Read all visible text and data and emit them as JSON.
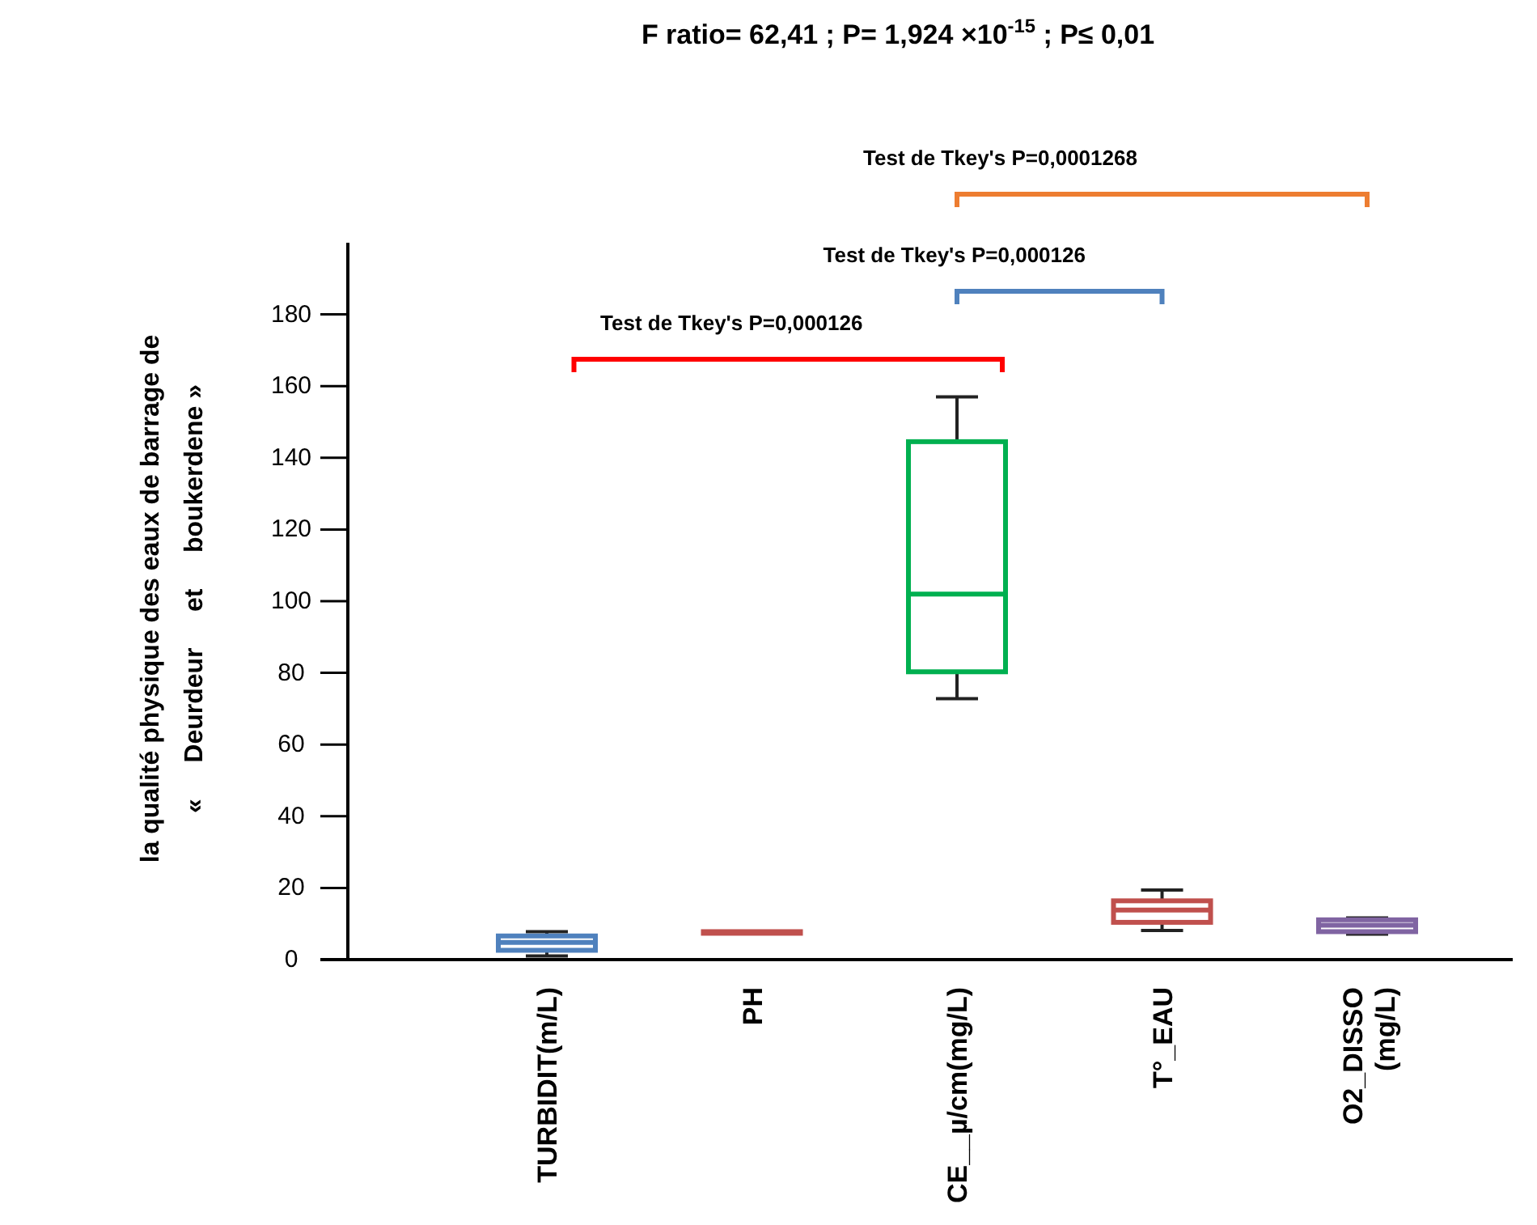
{
  "chart_data": {
    "type": "box",
    "title": "F ratio= 62,41 ; P= 1,924 ×10$^{-15}$ ; P≤ 0,01",
    "ylabel": "la qualité physique des eaux de barrage de\n«     Deurdeur     et     boukerdene »",
    "categories": [
      "TURBIDIT(m/L)",
      "PH",
      "CE__µ/cm(mg/L)",
      "T°_EAU",
      "O2_DISSO\n(mg/L)"
    ],
    "colors": [
      "#4f81bd",
      "#c0504d",
      "#00b050",
      "#c0504d",
      "#8064a2"
    ],
    "boxes": [
      {
        "low": 1.0,
        "q1": 2.6,
        "median": 4.8,
        "q3": 6.6,
        "high": 7.8
      },
      {
        "low": 7.5,
        "q1": 7.6,
        "median": 7.7,
        "q3": 7.8,
        "high": 7.9
      },
      {
        "low": 72.8,
        "q1": 80.3,
        "median": 102,
        "q3": 144.5,
        "high": 157
      },
      {
        "low": 8.1,
        "q1": 10.4,
        "median": 13.8,
        "q3": 16.4,
        "high": 19.4
      },
      {
        "low": 7.1,
        "q1": 7.8,
        "median": 9.6,
        "q3": 11.1,
        "high": 11.6
      }
    ],
    "ylim": [
      0,
      200
    ],
    "yticks": [
      0,
      20,
      40,
      60,
      80,
      100,
      120,
      140,
      160,
      180
    ],
    "grid": false,
    "annotations": [
      "Test de Tkey's P=0,000126",
      "Test de Tkey's P=0,000126",
      "Test de Tkey's P=0,0001268"
    ]
  }
}
